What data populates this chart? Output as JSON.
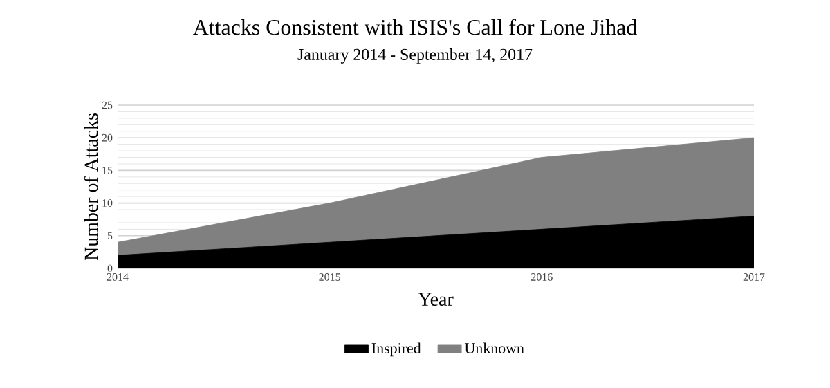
{
  "chart_data": {
    "type": "area",
    "title": "Attacks Consistent with ISIS's Call for Lone Jihad",
    "subtitle": "January 2014 - September 14, 2017",
    "xlabel": "Year",
    "ylabel": "Number of Attacks",
    "categories": [
      "2014",
      "2015",
      "2016",
      "2017"
    ],
    "stacked": true,
    "series": [
      {
        "name": "Inspired",
        "color": "#000000",
        "values": [
          2,
          4,
          6,
          8
        ]
      },
      {
        "name": "Unknown",
        "color": "#808080",
        "values": [
          2,
          6,
          11,
          12
        ]
      }
    ],
    "ylim": [
      0,
      25
    ],
    "yticks": [
      0,
      5,
      10,
      15,
      20,
      25
    ],
    "grid": "y",
    "legend": "bottom"
  }
}
